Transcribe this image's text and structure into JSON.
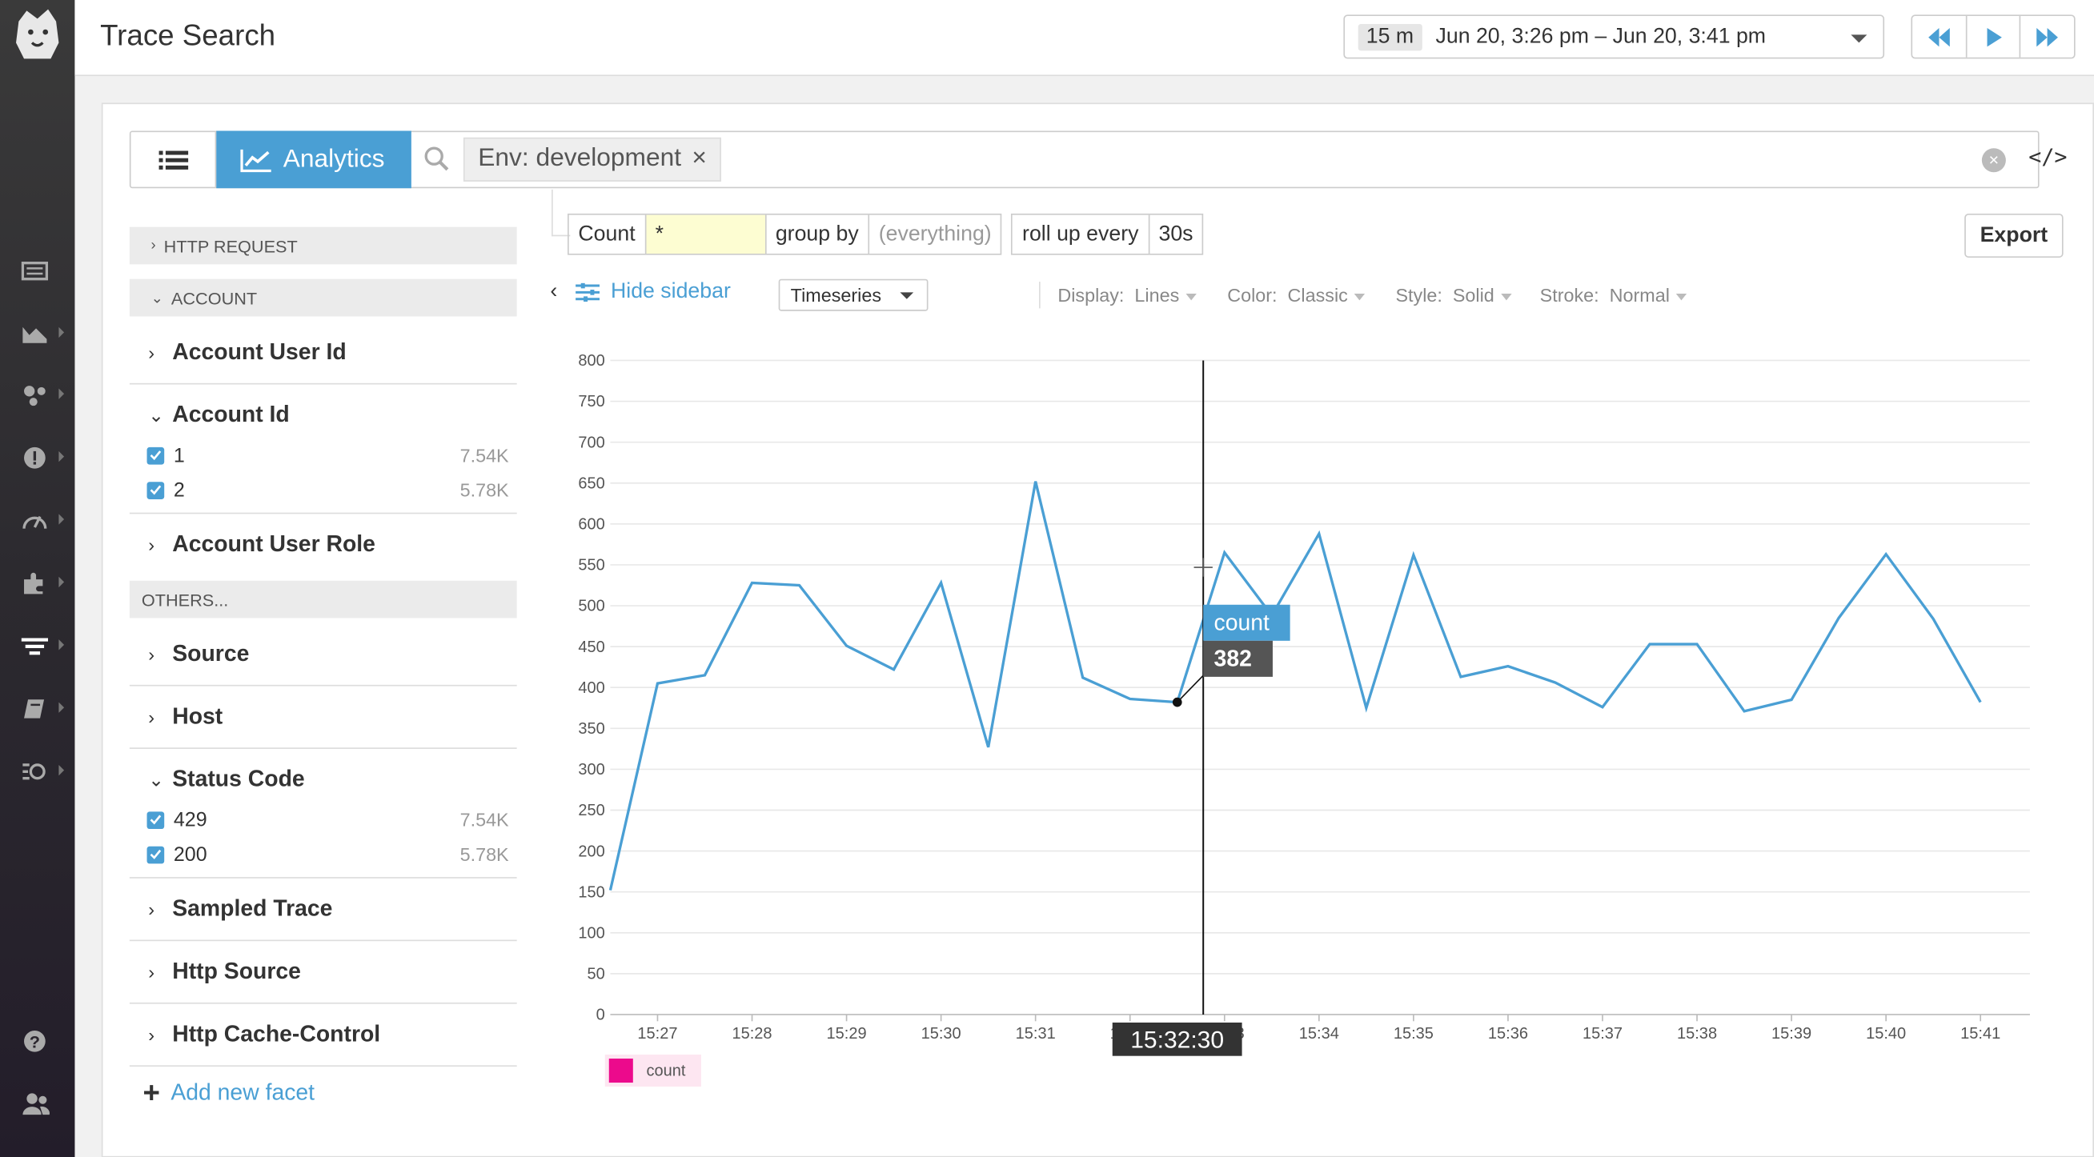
{
  "header": {
    "title": "Trace Search",
    "time_badge": "15 m",
    "time_range": "Jun 20, 3:26 pm – Jun 20, 3:41 pm"
  },
  "search": {
    "analytics_label": "Analytics",
    "env_chip": "Env: development",
    "code_toggle": "</>"
  },
  "sidebar": {
    "http_request": "HTTP REQUEST",
    "account_header": "ACCOUNT",
    "account_user_id": "Account User Id",
    "account_id": "Account Id",
    "account_id_values": [
      {
        "label": "1",
        "count": "7.54K"
      },
      {
        "label": "2",
        "count": "5.78K"
      }
    ],
    "account_user_role": "Account User Role",
    "others_header": "OTHERS...",
    "source": "Source",
    "host": "Host",
    "status_code": "Status Code",
    "status_code_values": [
      {
        "label": "429",
        "count": "7.54K"
      },
      {
        "label": "200",
        "count": "5.78K"
      }
    ],
    "sampled_trace": "Sampled Trace",
    "http_source": "Http Source",
    "http_cache_control": "Http Cache-Control",
    "add_facet": "Add new facet"
  },
  "query": {
    "measure": "Count",
    "field": "*",
    "group_by_label": "group by",
    "group_by_value": "(everything)",
    "rollup_label": "roll up every",
    "rollup_value": "30s",
    "export": "Export"
  },
  "options": {
    "hide_sidebar": "Hide sidebar",
    "viz_type": "Timeseries",
    "display_label": "Display:",
    "display_value": "Lines",
    "color_label": "Color:",
    "color_value": "Classic",
    "style_label": "Style:",
    "style_value": "Solid",
    "stroke_label": "Stroke:",
    "stroke_value": "Normal"
  },
  "colors": {
    "accent": "#4a9fd4",
    "line": "#4a9fd4",
    "legend_swatch": "#ec0a8c",
    "tooltip_dark": "#555555"
  },
  "chart_data": {
    "type": "line",
    "x_unit": "time",
    "x": [
      "15:26:30",
      "15:27:00",
      "15:27:30",
      "15:28:00",
      "15:28:30",
      "15:29:00",
      "15:29:30",
      "15:30:00",
      "15:30:30",
      "15:31:00",
      "15:31:30",
      "15:32:00",
      "15:32:30",
      "15:33:00",
      "15:33:30",
      "15:34:00",
      "15:34:30",
      "15:35:00",
      "15:35:30",
      "15:36:00",
      "15:36:30",
      "15:37:00",
      "15:37:30",
      "15:38:00",
      "15:38:30",
      "15:39:00",
      "15:39:30",
      "15:40:00",
      "15:40:30",
      "15:41:00"
    ],
    "series": [
      {
        "name": "count",
        "values": [
          152,
          405,
          415,
          528,
          525,
          451,
          422,
          528,
          327,
          652,
          412,
          386,
          382,
          565,
          488,
          588,
          375,
          562,
          413,
          426,
          406,
          376,
          453,
          453,
          371,
          385,
          485,
          563,
          484,
          382
        ]
      }
    ],
    "y_ticks": [
      0,
      50,
      100,
      150,
      200,
      250,
      300,
      350,
      400,
      450,
      500,
      550,
      600,
      650,
      700,
      750,
      800
    ],
    "ylim": [
      0,
      800
    ],
    "x_tick_labels": [
      "15:27",
      "15:28",
      "15:29",
      "15:30",
      "15:31",
      "15:32",
      "15:33",
      "15:34",
      "15:35",
      "15:36",
      "15:37",
      "15:38",
      "15:39",
      "15:40",
      "15:41"
    ],
    "cursor": {
      "time": "15:32:30",
      "series": "count",
      "value": 382
    },
    "grid": true,
    "legend": "bottom-left"
  }
}
